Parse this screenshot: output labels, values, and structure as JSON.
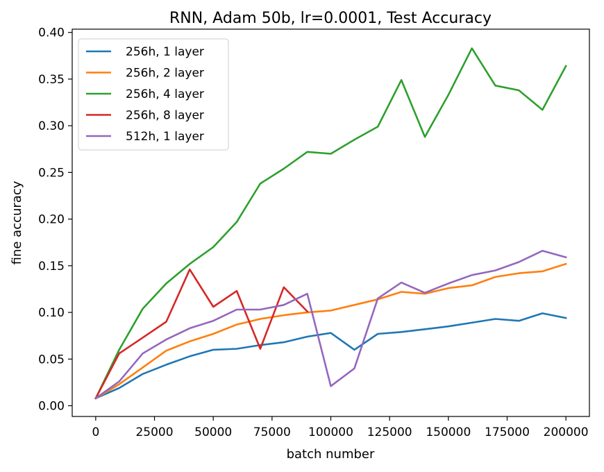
{
  "chart_data": {
    "type": "line",
    "title": "RNN, Adam 50b, lr=0.0001, Test Accuracy",
    "xlabel": "batch number",
    "ylabel": "fine accuracy",
    "xlim": [
      -10000,
      210000
    ],
    "ylim": [
      -0.0115,
      0.4035
    ],
    "xticks": [
      0,
      25000,
      50000,
      75000,
      100000,
      125000,
      150000,
      175000,
      200000
    ],
    "xtick_labels": [
      "0",
      "25000",
      "50000",
      "75000",
      "100000",
      "125000",
      "150000",
      "175000",
      "200000"
    ],
    "yticks": [
      0.0,
      0.05,
      0.1,
      0.15,
      0.2,
      0.25,
      0.3,
      0.35,
      0.4
    ],
    "ytick_labels": [
      "0.00",
      "0.05",
      "0.10",
      "0.15",
      "0.20",
      "0.25",
      "0.30",
      "0.35",
      "0.40"
    ],
    "grid": false,
    "legend_position": "top-left",
    "series": [
      {
        "name": "256h, 1 layer",
        "color": "#1f77b4",
        "x": [
          0,
          10000,
          20000,
          30000,
          40000,
          50000,
          60000,
          70000,
          80000,
          90000,
          100000,
          110000,
          120000,
          130000,
          140000,
          150000,
          160000,
          170000,
          180000,
          190000,
          200000
        ],
        "y": [
          0.008,
          0.019,
          0.034,
          0.044,
          0.053,
          0.06,
          0.061,
          0.065,
          0.068,
          0.074,
          0.078,
          0.06,
          0.077,
          0.079,
          0.082,
          0.085,
          0.089,
          0.093,
          0.091,
          0.099,
          0.094
        ]
      },
      {
        "name": "256h, 2 layer",
        "color": "#ff7f0e",
        "x": [
          0,
          10000,
          20000,
          30000,
          40000,
          50000,
          60000,
          70000,
          80000,
          90000,
          100000,
          110000,
          120000,
          130000,
          140000,
          150000,
          160000,
          170000,
          180000,
          190000,
          200000
        ],
        "y": [
          0.008,
          0.023,
          0.041,
          0.059,
          0.069,
          0.077,
          0.087,
          0.093,
          0.097,
          0.1,
          0.102,
          0.108,
          0.114,
          0.122,
          0.12,
          0.126,
          0.129,
          0.138,
          0.142,
          0.144,
          0.152
        ]
      },
      {
        "name": "256h, 4 layer",
        "color": "#2ca02c",
        "x": [
          0,
          10000,
          20000,
          30000,
          40000,
          50000,
          60000,
          70000,
          80000,
          90000,
          100000,
          110000,
          120000,
          130000,
          140000,
          150000,
          160000,
          170000,
          180000,
          190000,
          200000
        ],
        "y": [
          0.008,
          0.06,
          0.104,
          0.131,
          0.152,
          0.17,
          0.197,
          0.238,
          0.254,
          0.272,
          0.27,
          0.285,
          0.299,
          0.349,
          0.288,
          0.333,
          0.383,
          0.343,
          0.338,
          0.317,
          0.364
        ]
      },
      {
        "name": "256h, 8 layer",
        "color": "#d62728",
        "x": [
          0,
          10000,
          20000,
          30000,
          40000,
          50000,
          60000,
          70000,
          80000,
          90000
        ],
        "y": [
          0.008,
          0.056,
          0.073,
          0.09,
          0.146,
          0.106,
          0.123,
          0.061,
          0.127,
          0.101
        ]
      },
      {
        "name": "512h, 1 layer",
        "color": "#9467bd",
        "x": [
          0,
          10000,
          20000,
          30000,
          40000,
          50000,
          60000,
          70000,
          80000,
          90000,
          100000,
          110000,
          120000,
          130000,
          140000,
          150000,
          160000,
          170000,
          180000,
          190000,
          200000
        ],
        "y": [
          0.008,
          0.026,
          0.056,
          0.071,
          0.083,
          0.091,
          0.103,
          0.103,
          0.108,
          0.12,
          0.021,
          0.04,
          0.115,
          0.132,
          0.121,
          0.131,
          0.14,
          0.145,
          0.154,
          0.166,
          0.159
        ]
      }
    ]
  }
}
